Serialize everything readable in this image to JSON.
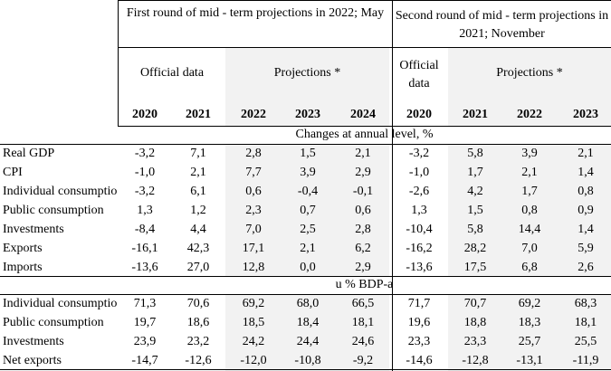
{
  "header": {
    "group1_title": "First round of mid - term  projections in 2022; May",
    "group2_title": "Second round of mid - term projections in 2021;  November",
    "g1_official": "Official data",
    "g1_projections": "Projections *",
    "g2_official": "Official data",
    "g2_projections": "Projections *",
    "years": [
      "2020",
      "2021",
      "2022",
      "2023",
      "2024",
      "2020",
      "2021",
      "2022",
      "2023"
    ]
  },
  "section1": {
    "title": "Changes at annual level, %",
    "rows": [
      {
        "label": "Real GDP",
        "values": [
          "-3,2",
          "7,1",
          "2,8",
          "1,5",
          "2,1",
          "-3,2",
          "5,8",
          "3,9",
          "2,1"
        ]
      },
      {
        "label": "CPI",
        "values": [
          "-1,0",
          "2,1",
          "7,7",
          "3,9",
          "2,9",
          "-1,0",
          "1,7",
          "2,1",
          "1,4"
        ]
      },
      {
        "label": "Individual consumption",
        "values": [
          "-3,2",
          "6,1",
          "0,6",
          "-0,4",
          "-0,1",
          "-2,6",
          "4,2",
          "1,7",
          "0,8"
        ]
      },
      {
        "label": "Public consumption",
        "values": [
          "1,3",
          "1,2",
          "2,3",
          "0,7",
          "0,6",
          "1,3",
          "1,5",
          "0,8",
          "0,9"
        ]
      },
      {
        "label": "Investments",
        "values": [
          "-8,4",
          "4,4",
          "7,0",
          "2,5",
          "2,8",
          "-10,4",
          "5,8",
          "14,4",
          "1,4"
        ]
      },
      {
        "label": "Exports",
        "values": [
          "-16,1",
          "42,3",
          "17,1",
          "2,1",
          "6,2",
          "-16,2",
          "28,2",
          "7,0",
          "5,9"
        ]
      },
      {
        "label": "Imports",
        "values": [
          "-13,6",
          "27,0",
          "12,8",
          "0,0",
          "2,9",
          "-13,6",
          "17,5",
          "6,8",
          "2,6"
        ]
      }
    ]
  },
  "section2": {
    "title": "u % BDP-a",
    "rows": [
      {
        "label": "Individual consumption",
        "values": [
          "71,3",
          "70,6",
          "69,2",
          "68,0",
          "66,5",
          "71,7",
          "70,7",
          "69,2",
          "68,3"
        ]
      },
      {
        "label": "Public consumption",
        "values": [
          "19,7",
          "18,6",
          "18,5",
          "18,4",
          "18,1",
          "19,6",
          "18,8",
          "18,3",
          "18,1"
        ]
      },
      {
        "label": "Investments",
        "values": [
          "23,9",
          "23,2",
          "24,2",
          "24,4",
          "24,6",
          "23,3",
          "23,3",
          "25,7",
          "25,5"
        ]
      },
      {
        "label": "Net exports",
        "values": [
          "-14,7",
          "-12,6",
          "-12,0",
          "-10,8",
          "-9,2",
          "-14,6",
          "-12,8",
          "-13,1",
          "-11,9"
        ]
      }
    ]
  }
}
